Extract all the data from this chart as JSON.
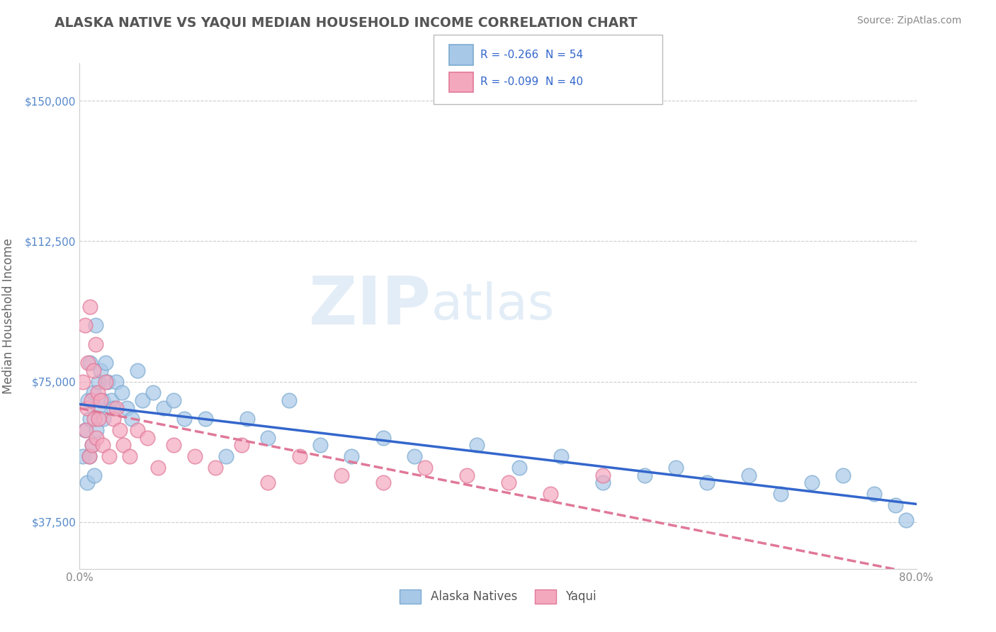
{
  "title": "ALASKA NATIVE VS YAQUI MEDIAN HOUSEHOLD INCOME CORRELATION CHART",
  "source": "Source: ZipAtlas.com",
  "ylabel": "Median Household Income",
  "xlim": [
    0.0,
    0.8
  ],
  "ylim": [
    25000,
    160000
  ],
  "ytick_labels": [
    "$37,500",
    "$75,000",
    "$112,500",
    "$150,000"
  ],
  "ytick_values": [
    37500,
    75000,
    112500,
    150000
  ],
  "watermark_zip": "ZIP",
  "watermark_atlas": "atlas",
  "alaska_color": "#a8c8e8",
  "alaska_edge": "#7aaad0",
  "yaqui_color": "#f4a8be",
  "yaqui_edge": "#e07898",
  "regression_alaska_color": "#3366cc",
  "regression_yaqui_color": "#e07898",
  "background_color": "#ffffff",
  "grid_color": "#cccccc",
  "title_color": "#555555",
  "ytick_color": "#5588cc",
  "xtick_color": "#888888",
  "legend_R_color": "#3366cc",
  "alaska_natives_x": [
    0.003,
    0.005,
    0.007,
    0.008,
    0.009,
    0.01,
    0.01,
    0.012,
    0.013,
    0.014,
    0.015,
    0.016,
    0.017,
    0.018,
    0.02,
    0.022,
    0.023,
    0.025,
    0.027,
    0.03,
    0.032,
    0.035,
    0.04,
    0.045,
    0.05,
    0.055,
    0.06,
    0.07,
    0.08,
    0.09,
    0.1,
    0.12,
    0.14,
    0.16,
    0.18,
    0.2,
    0.23,
    0.26,
    0.29,
    0.32,
    0.38,
    0.42,
    0.46,
    0.5,
    0.54,
    0.57,
    0.6,
    0.64,
    0.67,
    0.7,
    0.73,
    0.76,
    0.78,
    0.79
  ],
  "alaska_natives_y": [
    55000,
    62000,
    48000,
    70000,
    55000,
    80000,
    65000,
    58000,
    72000,
    50000,
    90000,
    62000,
    68000,
    75000,
    78000,
    70000,
    65000,
    80000,
    75000,
    70000,
    68000,
    75000,
    72000,
    68000,
    65000,
    78000,
    70000,
    72000,
    68000,
    70000,
    65000,
    65000,
    55000,
    65000,
    60000,
    70000,
    58000,
    55000,
    60000,
    55000,
    58000,
    52000,
    55000,
    48000,
    50000,
    52000,
    48000,
    50000,
    45000,
    48000,
    50000,
    45000,
    42000,
    38000
  ],
  "yaqui_x": [
    0.003,
    0.005,
    0.006,
    0.007,
    0.008,
    0.009,
    0.01,
    0.011,
    0.012,
    0.013,
    0.014,
    0.015,
    0.016,
    0.017,
    0.018,
    0.02,
    0.022,
    0.025,
    0.028,
    0.032,
    0.035,
    0.038,
    0.042,
    0.048,
    0.055,
    0.065,
    0.075,
    0.09,
    0.11,
    0.13,
    0.155,
    0.18,
    0.21,
    0.25,
    0.29,
    0.33,
    0.37,
    0.41,
    0.45,
    0.5
  ],
  "yaqui_y": [
    75000,
    90000,
    62000,
    68000,
    80000,
    55000,
    95000,
    70000,
    58000,
    78000,
    65000,
    85000,
    60000,
    72000,
    65000,
    70000,
    58000,
    75000,
    55000,
    65000,
    68000,
    62000,
    58000,
    55000,
    62000,
    60000,
    52000,
    58000,
    55000,
    52000,
    58000,
    48000,
    55000,
    50000,
    48000,
    52000,
    50000,
    48000,
    45000,
    50000
  ]
}
